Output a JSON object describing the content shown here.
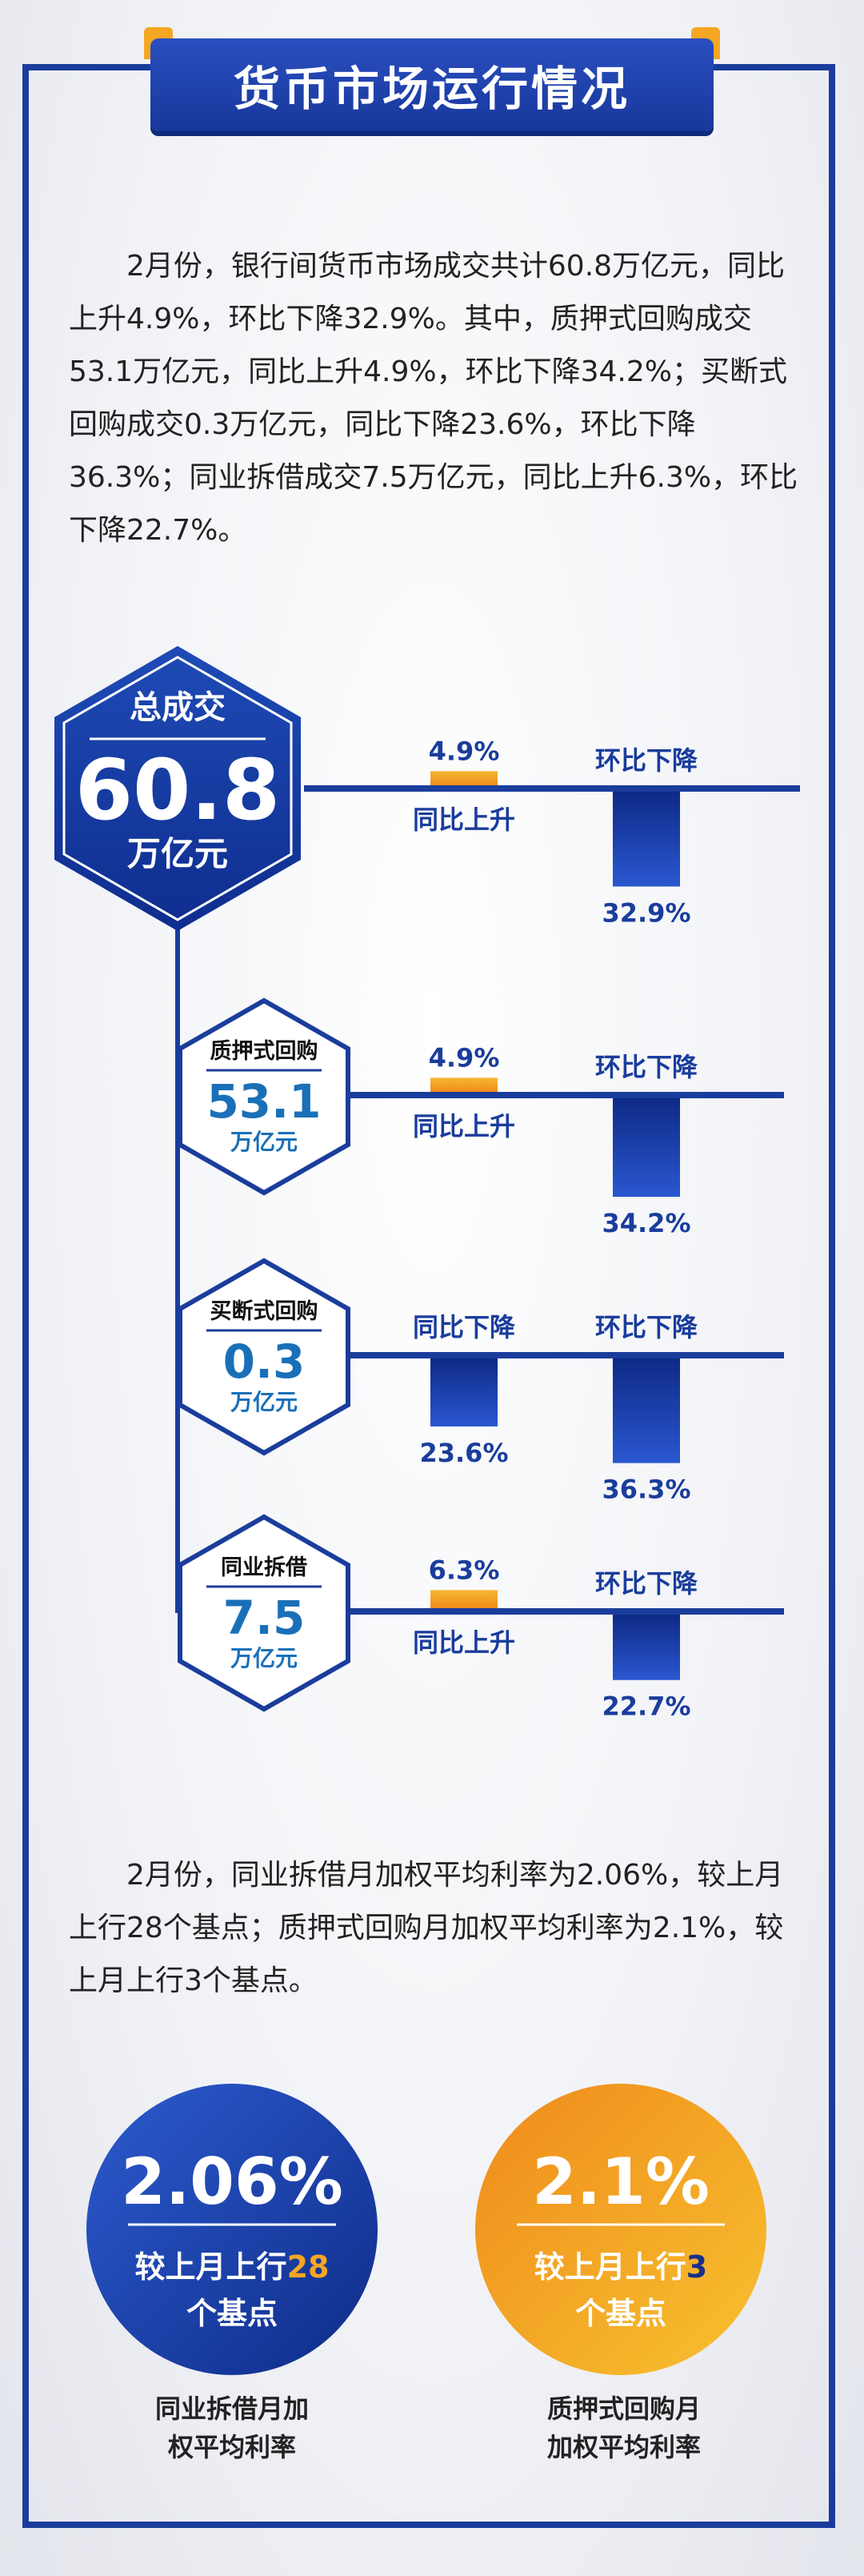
{
  "title": "货币市场运行情况",
  "paragraph1": "2月份，银行间货币市场成交共计60.8万亿元，同比上升4.9%，环比下降32.9%。其中，质押式回购成交53.1万亿元，同比上升4.9%，环比下降34.2%；买断式回购成交0.3万亿元，同比下降23.6%，环比下降36.3%；同业拆借成交7.5万亿元，同比上升6.3%，环比下降22.7%。",
  "paragraph2": "2月份，同业拆借月加权平均利率为2.06%，较上月上行28个基点；质押式回购月加权平均利率为2.1%，较上月上行3个基点。",
  "colors": {
    "navy": "#1a3d9c",
    "orange": "#f5a623",
    "blue_text": "#1a70b8"
  },
  "chart_data": {
    "type": "bar",
    "unit": "万亿元",
    "rows": [
      {
        "name": "总成交",
        "value": "60.8",
        "unit": "万亿元",
        "yoy": {
          "label": "同比上升",
          "value": 4.9,
          "text": "4.9%"
        },
        "mom": {
          "label": "环比下降",
          "value": -32.9,
          "text": "32.9%"
        }
      },
      {
        "name": "质押式回购",
        "value": "53.1",
        "unit": "万亿元",
        "yoy": {
          "label": "同比上升",
          "value": 4.9,
          "text": "4.9%"
        },
        "mom": {
          "label": "环比下降",
          "value": -34.2,
          "text": "34.2%"
        }
      },
      {
        "name": "买断式回购",
        "value": "0.3",
        "unit": "万亿元",
        "yoy": {
          "label": "同比下降",
          "value": -23.6,
          "text": "23.6%"
        },
        "mom": {
          "label": "环比下降",
          "value": -36.3,
          "text": "36.3%"
        }
      },
      {
        "name": "同业拆借",
        "value": "7.5",
        "unit": "万亿元",
        "yoy": {
          "label": "同比上升",
          "value": 6.3,
          "text": "6.3%"
        },
        "mom": {
          "label": "环比下降",
          "value": -22.7,
          "text": "22.7%"
        }
      }
    ]
  },
  "rates": [
    {
      "value": "2.06%",
      "line1_prefix": "较上月上行",
      "bp": "28",
      "line2": "个基点",
      "label_line1": "同业拆借月加",
      "label_line2": "权平均利率",
      "style": "blue"
    },
    {
      "value": "2.1%",
      "line1_prefix": "较上月上行",
      "bp": "3",
      "line2": "个基点",
      "label_line1": "质押式回购月",
      "label_line2": "加权平均利率",
      "style": "orange"
    }
  ]
}
